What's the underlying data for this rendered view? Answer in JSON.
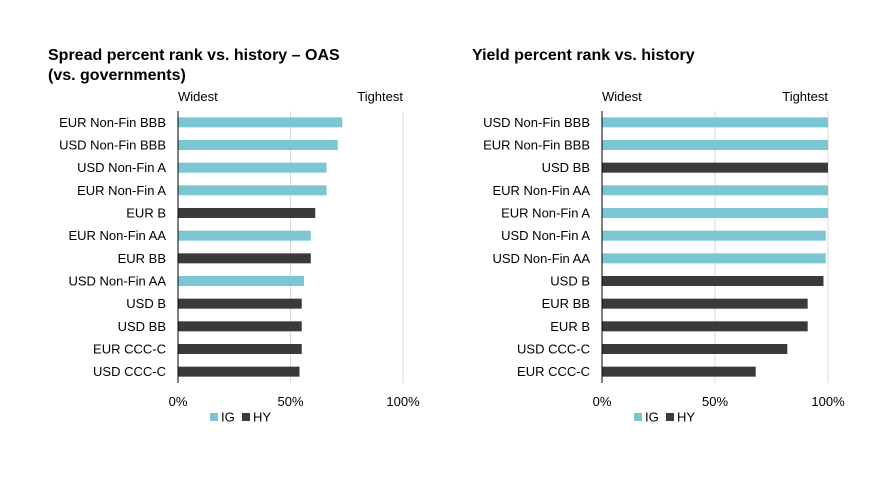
{
  "chart_data": [
    {
      "type": "bar",
      "orientation": "horizontal",
      "title_lines": [
        "Spread percent rank vs. history – OAS",
        "(vs. governments)"
      ],
      "left_label": "Widest",
      "right_label": "Tightest",
      "categories": [
        "EUR Non-Fin BBB",
        "USD Non-Fin BBB",
        "USD Non-Fin A",
        "EUR Non-Fin A",
        "EUR B",
        "EUR Non-Fin AA",
        "EUR BB",
        "USD Non-Fin AA",
        "USD B",
        "USD BB",
        "EUR CCC-C",
        "USD CCC-C"
      ],
      "values": [
        73,
        71,
        66,
        66,
        61,
        59,
        59,
        56,
        55,
        55,
        55,
        54
      ],
      "groups": [
        "IG",
        "IG",
        "IG",
        "IG",
        "HY",
        "IG",
        "HY",
        "IG",
        "HY",
        "HY",
        "HY",
        "HY"
      ],
      "xlim": [
        0,
        100
      ],
      "x_ticks": [
        0,
        50,
        100
      ],
      "x_tick_labels": [
        "0%",
        "50%",
        "100%"
      ],
      "grid": "vertical",
      "legend": [
        {
          "name": "IG",
          "color": "#7cc6d4"
        },
        {
          "name": "HY",
          "color": "#3a3a3a"
        }
      ],
      "legend_position": "bottom-left"
    },
    {
      "type": "bar",
      "orientation": "horizontal",
      "title_lines": [
        "Yield percent rank vs. history"
      ],
      "left_label": "Widest",
      "right_label": "Tightest",
      "categories": [
        "USD Non-Fin BBB",
        "EUR Non-Fin BBB",
        "USD BB",
        "EUR Non-Fin AA",
        "EUR Non-Fin A",
        "USD Non-Fin A",
        "USD Non-Fin AA",
        "USD B",
        "EUR BB",
        "EUR B",
        "USD CCC-C",
        "EUR CCC-C"
      ],
      "values": [
        100,
        100,
        100,
        100,
        100,
        99,
        99,
        98,
        91,
        91,
        82,
        68
      ],
      "groups": [
        "IG",
        "IG",
        "HY",
        "IG",
        "IG",
        "IG",
        "IG",
        "HY",
        "HY",
        "HY",
        "HY",
        "HY"
      ],
      "xlim": [
        0,
        100
      ],
      "x_ticks": [
        0,
        50,
        100
      ],
      "x_tick_labels": [
        "0%",
        "50%",
        "100%"
      ],
      "grid": "vertical",
      "legend": [
        {
          "name": "IG",
          "color": "#7cc6d4"
        },
        {
          "name": "HY",
          "color": "#3a3a3a"
        }
      ],
      "legend_position": "bottom-left"
    }
  ],
  "colors": {
    "IG": "#7cc6d4",
    "HY": "#3a3a3a",
    "grid": "#d9d9d9",
    "axis": "#000000"
  }
}
